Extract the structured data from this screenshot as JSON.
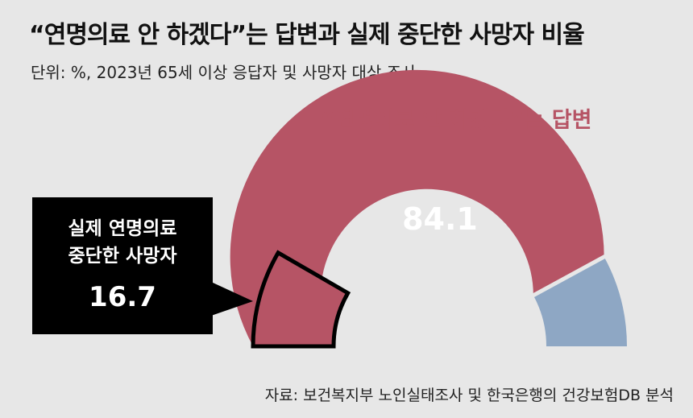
{
  "title": "“연명의료 안 하겠다”는 답변과 실제 중단한 사망자 비율",
  "subtitle": "단위: %, 2023년 65세 이상 응답자 및 사망자 대상 조사.",
  "source": "자료: 보건복지부 노인실태조사 및 한국은행의 건강보험DB 분석",
  "colors": {
    "answer": "#b65465",
    "other": "#8ea7c4",
    "highlight_border": "#000000"
  },
  "chart_data": {
    "type": "donut",
    "title": "“연명의료 안 하겠다”는 답변과 실제 중단한 사망자 비율",
    "unit": "%",
    "answer": {
      "label": "“연명의료 안 하겠다”는 답변",
      "value": 84.1,
      "value_label": "84.1"
    },
    "actual": {
      "label_lines": [
        "실제 연명의료",
        "중단한 사망자"
      ],
      "value": 16.7,
      "value_label": "16.7"
    }
  }
}
